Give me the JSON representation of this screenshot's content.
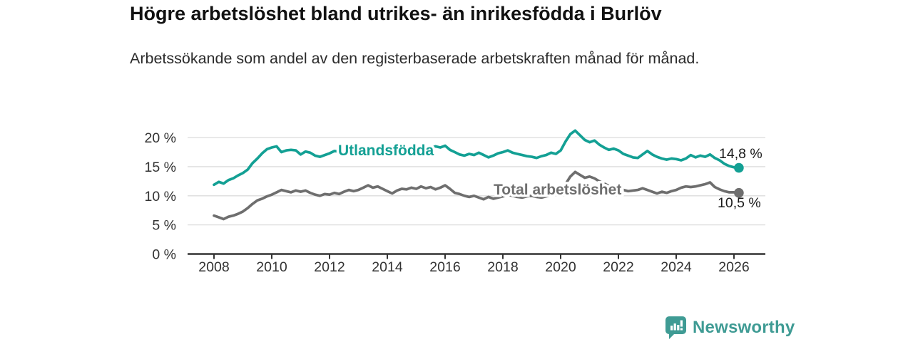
{
  "header": {
    "title": "Högre arbetslöshet bland utrikes- än inrikesfödda i Burlöv",
    "subtitle": "Arbetssökande som andel av den registerbaserade arbetskraften månad för månad."
  },
  "chart_data": {
    "type": "line",
    "x": {
      "start": 2008.0,
      "step_years": 0.1667,
      "unit": "decimal-year",
      "end": 2026.17
    },
    "series": [
      {
        "name": "Utlandsfödda",
        "color": "#13a094",
        "end_value_label": "14,8 %",
        "end_value": 14.8,
        "values": [
          11.9,
          12.4,
          12.1,
          12.7,
          13.0,
          13.5,
          13.9,
          14.5,
          15.6,
          16.4,
          17.3,
          18.0,
          18.3,
          18.5,
          17.5,
          17.8,
          17.9,
          17.8,
          17.1,
          17.6,
          17.4,
          16.9,
          16.7,
          17.0,
          17.3,
          17.7,
          17.6,
          17.2,
          17.5,
          17.2,
          17.5,
          17.3,
          17.7,
          17.9,
          17.6,
          17.4,
          17.7,
          17.9,
          17.4,
          17.3,
          17.6,
          17.8,
          18.0,
          18.4,
          18.0,
          18.2,
          18.5,
          18.3,
          18.6,
          17.9,
          17.5,
          17.1,
          16.9,
          17.2,
          17.0,
          17.4,
          17.0,
          16.6,
          16.9,
          17.3,
          17.5,
          17.8,
          17.4,
          17.2,
          17.0,
          16.8,
          16.7,
          16.5,
          16.8,
          17.0,
          17.4,
          17.2,
          17.8,
          19.3,
          20.6,
          21.2,
          20.4,
          19.6,
          19.2,
          19.5,
          18.8,
          18.3,
          17.9,
          18.1,
          17.8,
          17.2,
          16.9,
          16.6,
          16.5,
          17.1,
          17.7,
          17.1,
          16.7,
          16.4,
          16.2,
          16.4,
          16.3,
          16.1,
          16.4,
          17.0,
          16.6,
          16.9,
          16.7,
          17.1,
          16.5,
          16.1,
          15.5,
          15.1,
          14.9,
          14.8
        ]
      },
      {
        "name": "Total arbetslöshet",
        "color": "#6e6e6e",
        "end_value_label": "10,5 %",
        "end_value": 10.5,
        "values": [
          6.6,
          6.3,
          6.0,
          6.4,
          6.6,
          6.9,
          7.3,
          7.9,
          8.6,
          9.2,
          9.5,
          9.9,
          10.2,
          10.6,
          11.0,
          10.8,
          10.6,
          10.9,
          10.7,
          10.9,
          10.5,
          10.2,
          10.0,
          10.3,
          10.2,
          10.5,
          10.3,
          10.7,
          11.0,
          10.8,
          11.0,
          11.4,
          11.8,
          11.4,
          11.6,
          11.2,
          10.8,
          10.4,
          10.9,
          11.2,
          11.1,
          11.4,
          11.2,
          11.6,
          11.3,
          11.5,
          11.1,
          11.4,
          11.8,
          11.2,
          10.5,
          10.3,
          10.0,
          9.8,
          10.0,
          9.7,
          9.4,
          9.8,
          9.5,
          9.7,
          9.9,
          10.2,
          10.0,
          9.8,
          9.7,
          9.9,
          10.0,
          9.8,
          9.7,
          9.9,
          10.1,
          10.4,
          10.8,
          12.0,
          13.3,
          14.1,
          13.6,
          13.1,
          13.3,
          13.0,
          12.5,
          12.1,
          11.7,
          11.4,
          11.2,
          11.0,
          10.8,
          10.9,
          11.0,
          11.3,
          11.0,
          10.7,
          10.4,
          10.7,
          10.5,
          10.8,
          11.0,
          11.4,
          11.6,
          11.5,
          11.6,
          11.8,
          12.0,
          12.3,
          11.5,
          11.1,
          10.8,
          10.6,
          10.6,
          10.5
        ]
      }
    ],
    "xticks": {
      "values": [
        2008,
        2010,
        2012,
        2014,
        2016,
        2018,
        2020,
        2022,
        2024,
        2026
      ],
      "labels": [
        "2008",
        "2010",
        "2012",
        "2014",
        "2016",
        "2018",
        "2020",
        "2022",
        "2024",
        "2026"
      ]
    },
    "yticks": {
      "values": [
        0,
        5,
        10,
        15,
        20
      ],
      "labels": [
        "0 %",
        "5 %",
        "10 %",
        "15 %",
        "20 %"
      ]
    },
    "ylim": [
      0,
      20
    ],
    "grid": true,
    "legend": "inline-labels",
    "title": "",
    "xlabel": "",
    "ylabel": ""
  },
  "footer": {
    "brand": "Newsworthy"
  },
  "colors": {
    "accent_teal": "#13a094",
    "series_gray": "#6e6e6e",
    "series_label_gray": "#6f6f6f",
    "axis": "#333333",
    "gridline": "#dcdcdc",
    "text_dark": "#1a1a1a",
    "logo_teal": "#3f9b94"
  }
}
